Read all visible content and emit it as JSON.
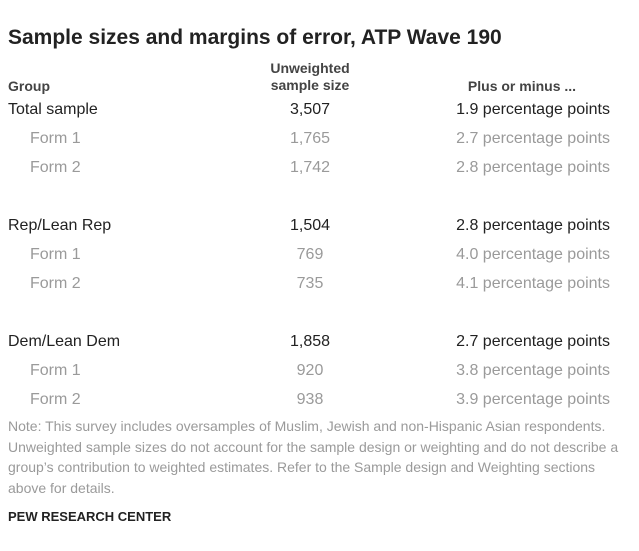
{
  "header": {
    "title": "Sample sizes and margins of error, ATP Wave 190"
  },
  "table": {
    "columns": [
      "Group",
      "Unweighted sample size",
      "Plus or minus ..."
    ],
    "groups": [
      {
        "rows": [
          {
            "group": "Total sample",
            "n": "3,507",
            "moe": "1.9 percentage points"
          },
          {
            "group": "Form 1",
            "n": "1,765",
            "moe": "2.7 percentage points"
          },
          {
            "group": "Form 2",
            "n": "1,742",
            "moe": "2.8 percentage points"
          }
        ]
      },
      {
        "rows": [
          {
            "group": "Rep/Lean Rep",
            "n": "1,504",
            "moe": "2.8 percentage points"
          },
          {
            "group": "Form 1",
            "n": "769",
            "moe": "4.0 percentage points"
          },
          {
            "group": "Form 2",
            "n": "735",
            "moe": "4.1 percentage points"
          }
        ]
      },
      {
        "rows": [
          {
            "group": "Dem/Lean Dem",
            "n": "1,858",
            "moe": "2.7 percentage points"
          },
          {
            "group": "Form 1",
            "n": "920",
            "moe": "3.8 percentage points"
          },
          {
            "group": "Form 2",
            "n": "938",
            "moe": "3.9 percentage points"
          }
        ]
      }
    ]
  },
  "note": "Note: This survey includes oversamples of Muslim, Jewish and non-Hispanic Asian respondents. Unweighted sample sizes do not account for the sample design or weighting and do not describe a group’s contribution to weighted estimates. Refer to the Sample design and Weighting sections above for details.",
  "source": "PEW RESEARCH CENTER"
}
